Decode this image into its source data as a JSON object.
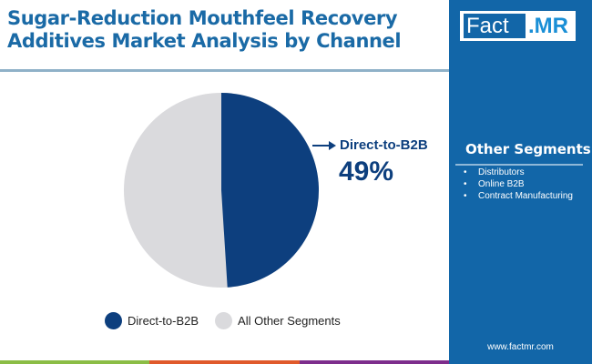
{
  "header": {
    "title_line1": "Sugar-Reduction Mouthfeel Recovery",
    "title_line2": "Additives Market Analysis by Channel"
  },
  "brand": {
    "logo_left": "Fact",
    "logo_right": ".MR",
    "url": "www.factmr.com"
  },
  "sidebar": {
    "title": "Other Segments",
    "items": [
      "Distributors",
      "Online B2B",
      "Contract Manufacturing"
    ],
    "bullet": "•"
  },
  "callout": {
    "label": "Direct-to-B2B",
    "value": "49%"
  },
  "legend": [
    {
      "label": "Direct-to-B2B",
      "color": "#0d3f7e"
    },
    {
      "label": "All Other Segments",
      "color": "#dadadd"
    }
  ],
  "colors": {
    "title": "#1a6aa6",
    "sidebar_bg": "#1266a8",
    "primary": "#0d3f7e",
    "secondary": "#dadadd",
    "bottom_bar": [
      "#8bbd45",
      "#e05a2b",
      "#7d2d8c"
    ]
  },
  "chart_data": {
    "type": "pie",
    "title": "Sugar-Reduction Mouthfeel Recovery Additives Market Analysis by Channel",
    "categories": [
      "Direct-to-B2B",
      "All Other Segments"
    ],
    "values": [
      49,
      51
    ],
    "unit": "%",
    "annotations": [
      {
        "label": "Direct-to-B2B",
        "value": "49%"
      }
    ],
    "legend_position": "bottom",
    "start_angle": "12 o'clock",
    "direction": "clockwise"
  }
}
